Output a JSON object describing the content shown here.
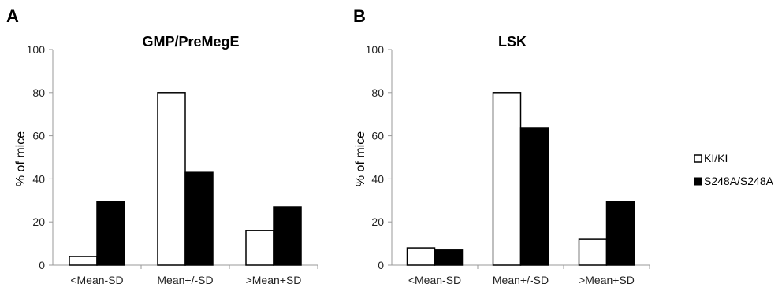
{
  "chart_data": [
    {
      "type": "bar",
      "panel_label": "A",
      "title": "GMP/PreMegE",
      "ylabel": "% of mice",
      "xlabel": "",
      "ylim": [
        0,
        100
      ],
      "yticks": [
        "0",
        "20",
        "40",
        "60",
        "80",
        "100"
      ],
      "categories": [
        "<Mean-SD",
        "Mean+/-SD",
        ">Mean+SD"
      ],
      "series": [
        {
          "name": "KI/KI",
          "color": "#ffffff",
          "values": [
            4,
            80,
            16
          ]
        },
        {
          "name": "S248A/S248A",
          "color": "#000000",
          "values": [
            29.5,
            43,
            27
          ]
        }
      ],
      "grid": false
    },
    {
      "type": "bar",
      "panel_label": "B",
      "title": "LSK",
      "ylabel": "% of mice",
      "xlabel": "",
      "ylim": [
        0,
        100
      ],
      "yticks": [
        "0",
        "20",
        "40",
        "60",
        "80",
        "100"
      ],
      "categories": [
        "<Mean-SD",
        "Mean+/-SD",
        ">Mean+SD"
      ],
      "series": [
        {
          "name": "KI/KI",
          "color": "#ffffff",
          "values": [
            8,
            80,
            12
          ]
        },
        {
          "name": "S248A/S248A",
          "color": "#000000",
          "values": [
            7,
            63.5,
            29.5
          ]
        }
      ],
      "grid": false,
      "legend_position": "right"
    }
  ]
}
